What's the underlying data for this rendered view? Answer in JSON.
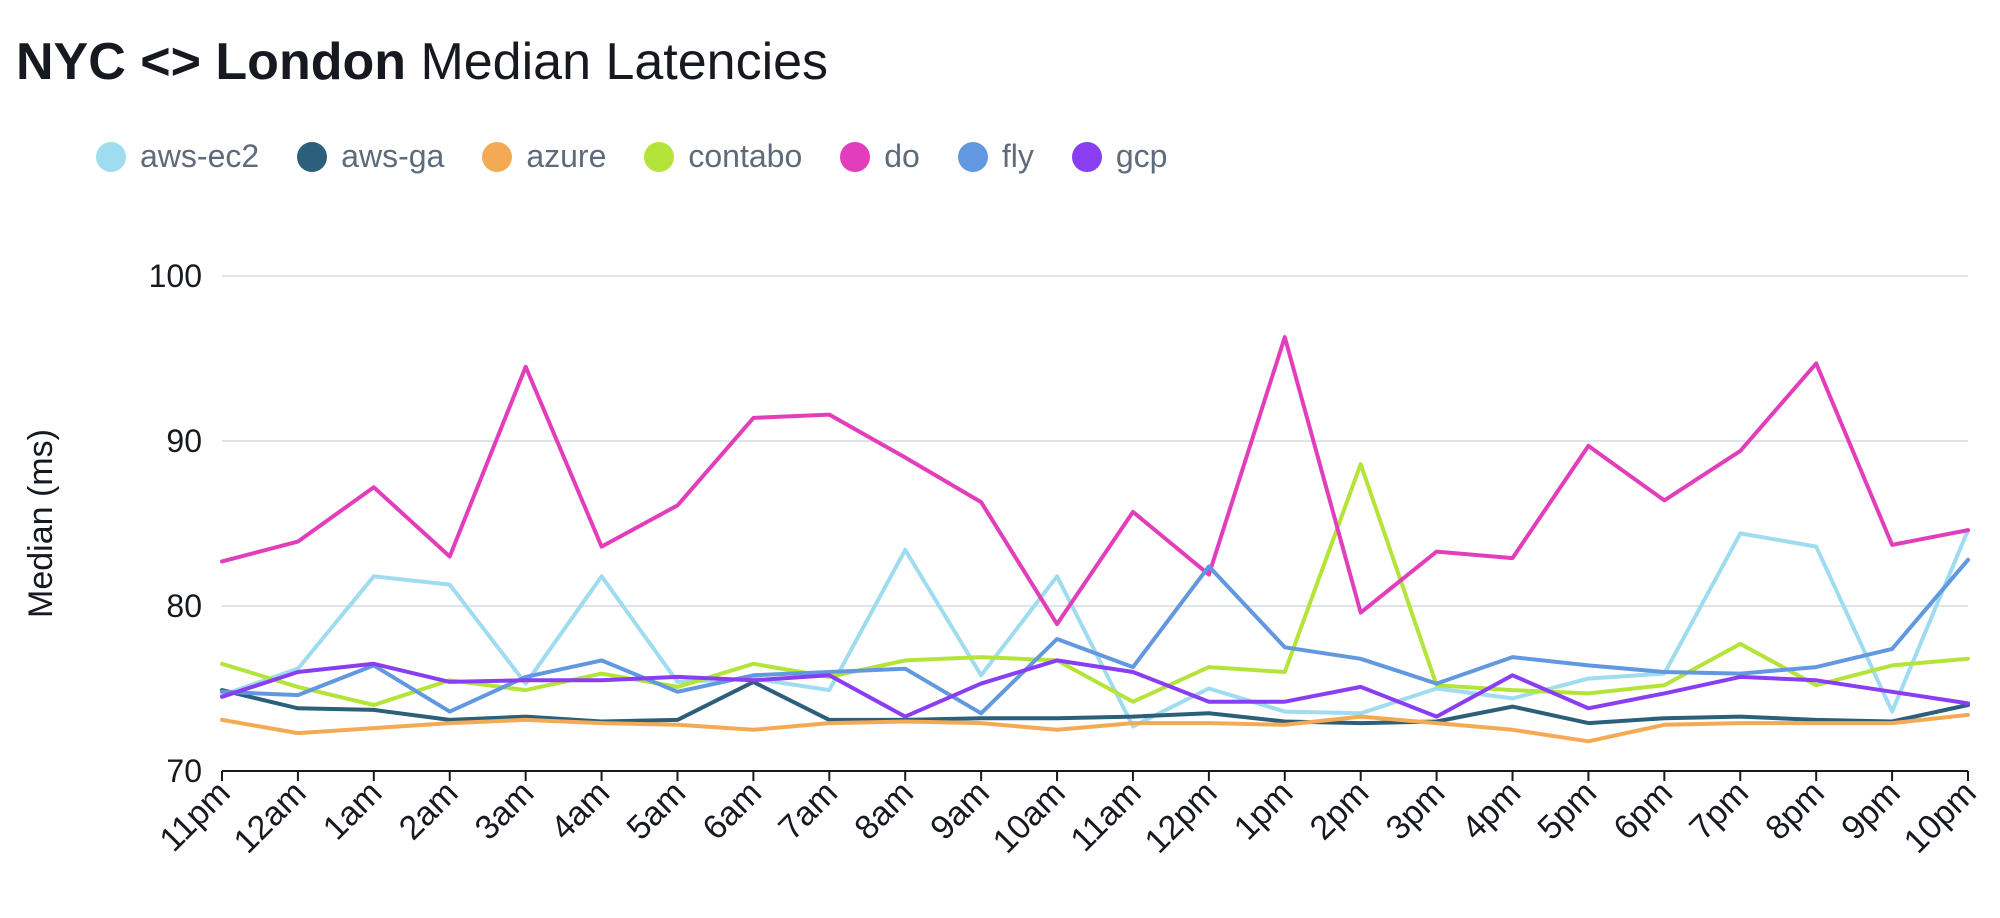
{
  "title": {
    "bold": "NYC <> London",
    "rest": " Median Latencies"
  },
  "chart_data": {
    "type": "line",
    "title": "NYC <> London Median Latencies",
    "xlabel": "",
    "ylabel": "Median (ms)",
    "ylim": [
      70,
      100
    ],
    "yticks": [
      70,
      80,
      90,
      100
    ],
    "grid": true,
    "legend_position": "top-left",
    "categories": [
      "11pm",
      "12am",
      "1am",
      "2am",
      "3am",
      "4am",
      "5am",
      "6am",
      "7am",
      "8am",
      "9am",
      "10am",
      "11am",
      "12pm",
      "1pm",
      "2pm",
      "3pm",
      "4pm",
      "5pm",
      "6pm",
      "7pm",
      "8pm",
      "9pm",
      "10pm"
    ],
    "series": [
      {
        "name": "aws-ec2",
        "color": "#9fdcf0",
        "values": [
          74.6,
          76.2,
          81.8,
          81.3,
          75.3,
          81.8,
          75.4,
          75.6,
          74.9,
          83.4,
          75.8,
          81.8,
          72.7,
          75.0,
          73.6,
          73.5,
          75.0,
          74.4,
          75.6,
          75.9,
          84.4,
          83.6,
          73.6,
          84.6
        ]
      },
      {
        "name": "aws-ga",
        "color": "#2b5f7a",
        "values": [
          74.9,
          73.8,
          73.7,
          73.1,
          73.3,
          73.0,
          73.1,
          75.4,
          73.1,
          73.1,
          73.2,
          73.2,
          73.3,
          73.5,
          73.0,
          72.9,
          73.0,
          73.9,
          72.9,
          73.2,
          73.3,
          73.1,
          73.0,
          74.0
        ]
      },
      {
        "name": "azure",
        "color": "#f4aa55",
        "values": [
          73.1,
          72.3,
          72.6,
          72.9,
          73.1,
          72.9,
          72.8,
          72.5,
          72.9,
          73.0,
          72.9,
          72.5,
          72.9,
          72.9,
          72.8,
          73.3,
          72.9,
          72.5,
          71.8,
          72.8,
          72.9,
          72.9,
          72.9,
          73.4
        ]
      },
      {
        "name": "contabo",
        "color": "#b4e43a",
        "values": [
          76.5,
          75.1,
          74.0,
          75.5,
          74.9,
          75.9,
          75.1,
          76.5,
          75.7,
          76.7,
          76.9,
          76.7,
          74.2,
          76.3,
          76.0,
          88.6,
          75.2,
          74.9,
          74.7,
          75.2,
          77.7,
          75.2,
          76.4,
          76.8
        ]
      },
      {
        "name": "do",
        "color": "#e23ebc",
        "values": [
          82.7,
          83.9,
          87.2,
          83.0,
          94.5,
          83.6,
          86.1,
          91.4,
          91.6,
          89.0,
          86.3,
          78.9,
          85.7,
          81.9,
          96.3,
          79.6,
          83.3,
          82.9,
          89.7,
          86.4,
          89.4,
          94.7,
          83.7,
          84.6
        ]
      },
      {
        "name": "fly",
        "color": "#6198e0",
        "values": [
          74.8,
          74.6,
          76.4,
          73.6,
          75.7,
          76.7,
          74.8,
          75.8,
          76.0,
          76.2,
          73.5,
          78.0,
          76.3,
          82.4,
          77.5,
          76.8,
          75.3,
          76.9,
          76.4,
          76.0,
          75.9,
          76.3,
          77.4,
          82.8
        ]
      },
      {
        "name": "gcp",
        "color": "#8a3ef2",
        "values": [
          74.5,
          76.0,
          76.5,
          75.4,
          75.5,
          75.5,
          75.7,
          75.5,
          75.8,
          73.3,
          75.3,
          76.7,
          76.0,
          74.2,
          74.2,
          75.1,
          73.3,
          75.8,
          73.8,
          74.7,
          75.7,
          75.5,
          74.8,
          74.1
        ]
      }
    ]
  }
}
